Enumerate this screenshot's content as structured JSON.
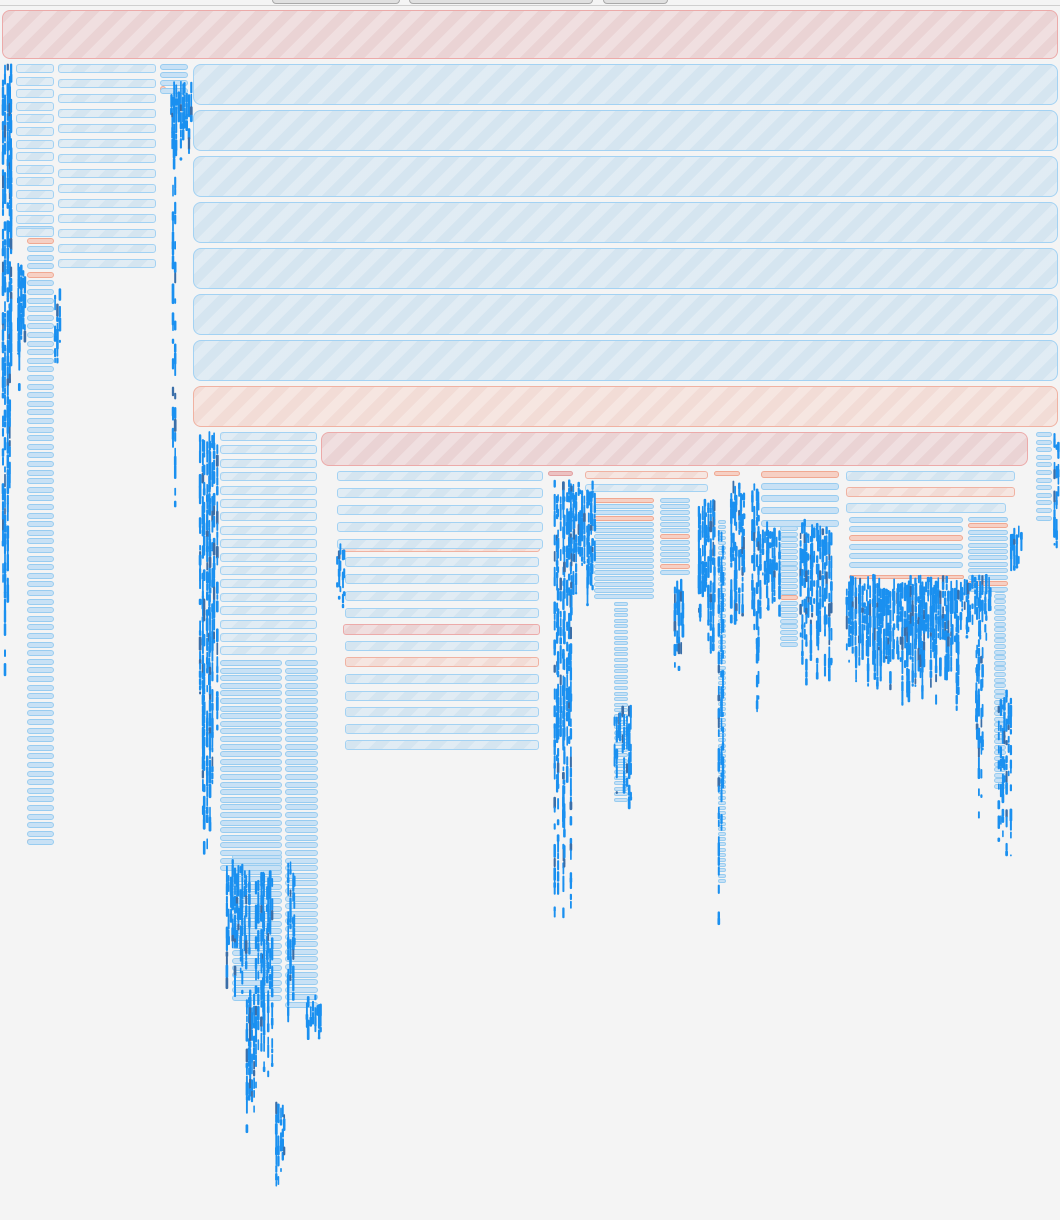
{
  "colors": {
    "background": "#f4f4f4",
    "blue_fill": "#d5e5f0",
    "blue_border": "#a3d2f3",
    "red_fill": "#ead3d4",
    "red_border": "#ecaaa9",
    "salmon_fill": "#f2dcd6",
    "salmon_border": "#f0b2a2",
    "sample_marker": "#1a90f0"
  },
  "toolbar": {
    "buttons": [
      {
        "name": "toolbar-button-1",
        "label": ""
      },
      {
        "name": "toolbar-button-2",
        "label": ""
      },
      {
        "name": "toolbar-button-3",
        "label": ""
      }
    ]
  },
  "flamegraph": {
    "root": {
      "label": ""
    },
    "frame_kinds": [
      "blue",
      "red",
      "salmon"
    ]
  }
}
